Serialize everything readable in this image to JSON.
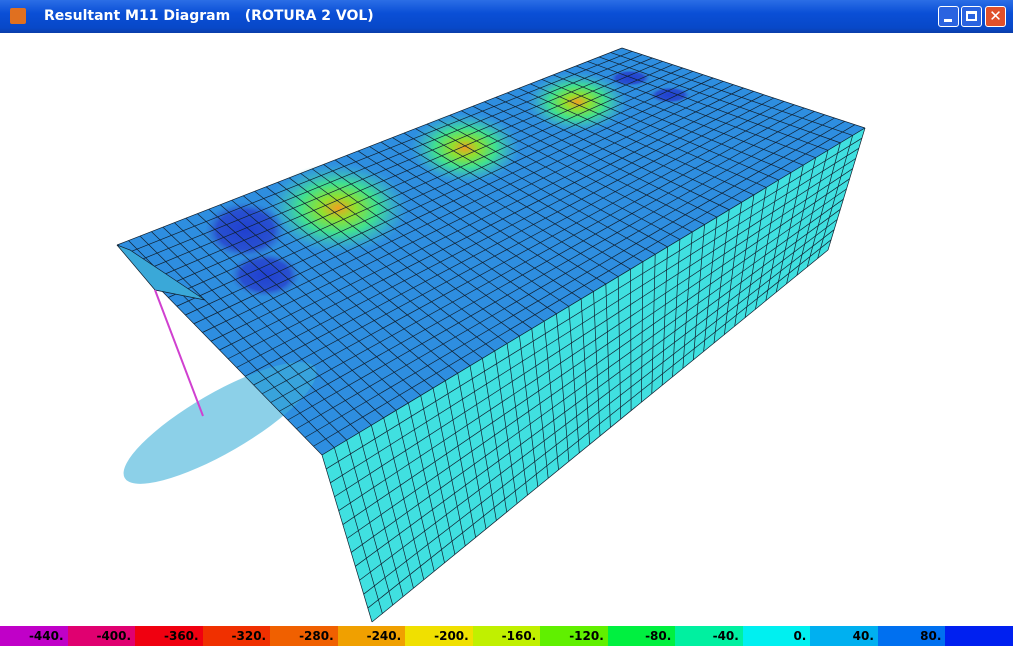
{
  "window": {
    "title": "Resultant M11 Diagram   (ROTURA 2 VOL)"
  },
  "legend": {
    "labels": [
      "-440.",
      "-400.",
      "-360.",
      "-320.",
      "-280.",
      "-240.",
      "-200.",
      "-160.",
      "-120.",
      "-80.",
      "-40.",
      "0.",
      "40.",
      "80."
    ]
  }
}
